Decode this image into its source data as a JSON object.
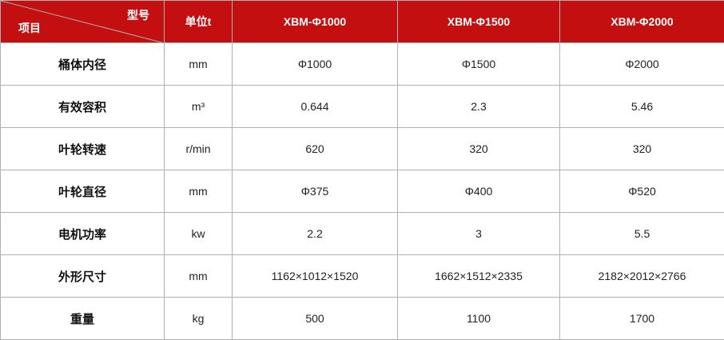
{
  "header": {
    "corner_top": "型号",
    "corner_bottom": "项目",
    "unit": "单位t",
    "models": [
      "XBM-Φ1000",
      "XBM-Φ1500",
      "XBM-Φ2000"
    ]
  },
  "rows": [
    {
      "label": "桶体内径",
      "unit": "mm",
      "values": [
        "Φ1000",
        "Φ1500",
        "Φ2000"
      ]
    },
    {
      "label": "有效容积",
      "unit": "m³",
      "values": [
        "0.644",
        "2.3",
        "5.46"
      ]
    },
    {
      "label": "叶轮转速",
      "unit": "r/min",
      "values": [
        "620",
        "320",
        "320"
      ]
    },
    {
      "label": "叶轮直径",
      "unit": "mm",
      "values": [
        "Φ375",
        "Φ400",
        "Φ520"
      ]
    },
    {
      "label": "电机功率",
      "unit": "kw",
      "values": [
        "2.2",
        "3",
        "5.5"
      ]
    },
    {
      "label": "外形尺寸",
      "unit": "mm",
      "values": [
        "1162×1012×1520",
        "1662×1512×2335",
        "2182×2012×2766"
      ]
    },
    {
      "label": "重量",
      "unit": "kg",
      "values": [
        "500",
        "1100",
        "1700"
      ]
    }
  ],
  "colors": {
    "header_bg": "#c30f0f",
    "border": "#b0b0b0"
  }
}
